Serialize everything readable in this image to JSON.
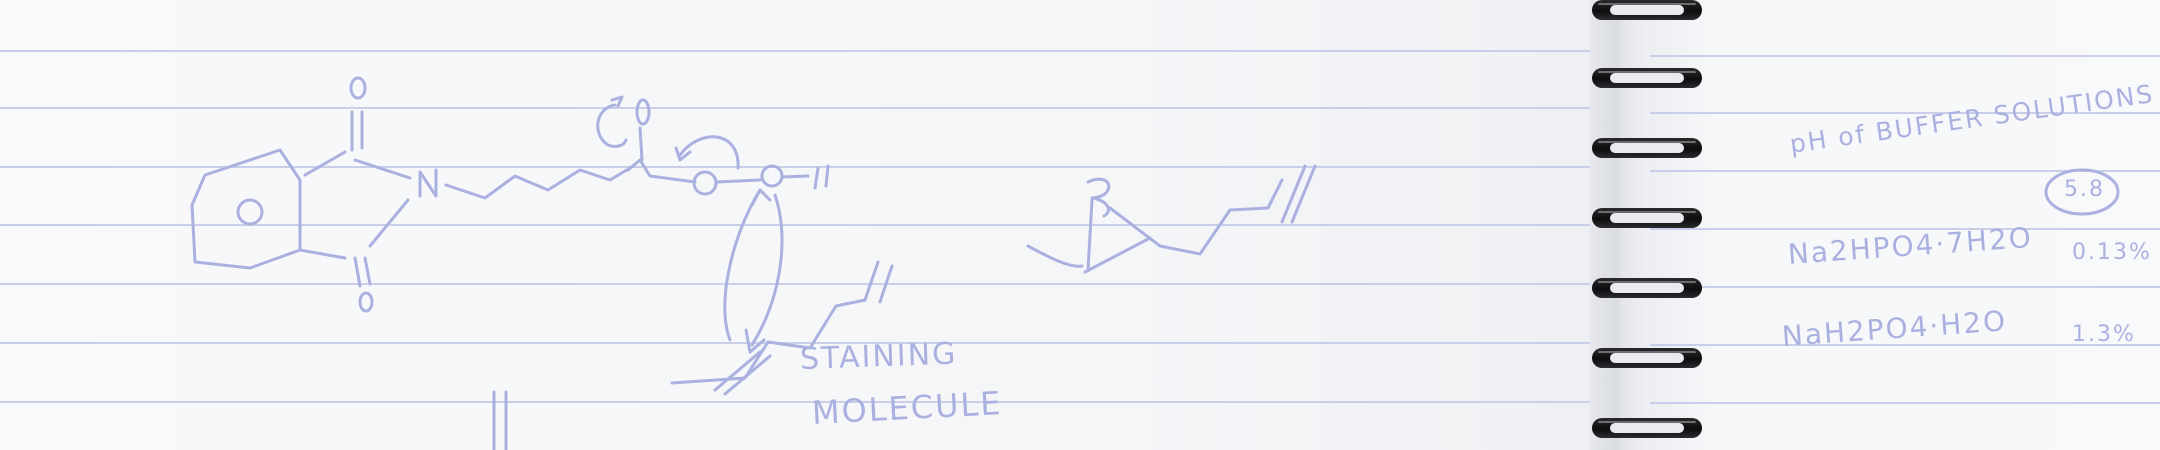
{
  "scene": {
    "subject": "spiral-notebook-with-handwritten-chemistry-notes",
    "colors": {
      "paper": "#f6f7f9",
      "rule_line": "#c9cfe8",
      "ink": "#aab1e0",
      "spiral": "#121214"
    }
  },
  "notes_left": {
    "label_line1": "STAINING",
    "label_line2": "MOLECULE"
  },
  "notes_right": {
    "title": "pH of BUFFER SOLUTIONS",
    "ph_value": "5.8",
    "rows": [
      {
        "compound": "Na2HPO4·7H2O",
        "amount": "0.13%"
      },
      {
        "compound": "NaH2PO4·H2O",
        "amount": "1.3%"
      }
    ]
  }
}
